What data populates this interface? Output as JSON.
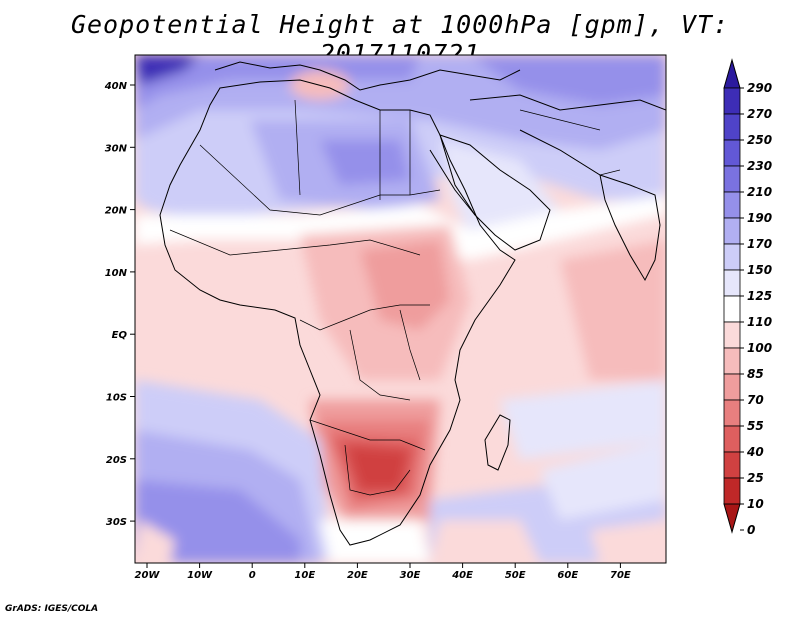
{
  "title": "Geopotential Height at 1000hPa [gpm], VT: 2017110721",
  "credit": "GrADS: IGES/COLA",
  "axes": {
    "lon_ticks": [
      "20W",
      "10W",
      "0",
      "10E",
      "20E",
      "30E",
      "40E",
      "50E",
      "60E",
      "70E"
    ],
    "lat_ticks": [
      "40N",
      "30N",
      "20N",
      "10N",
      "EQ",
      "10S",
      "20S",
      "30S"
    ]
  },
  "colorbar": {
    "levels": [
      "290",
      "270",
      "250",
      "230",
      "210",
      "190",
      "170",
      "150",
      "125",
      "110",
      "100",
      "85",
      "70",
      "55",
      "40",
      "25",
      "10",
      "0"
    ],
    "colors": [
      "#2b1a9e",
      "#3d2db6",
      "#4f43c8",
      "#6258d6",
      "#7a72e0",
      "#9590ea",
      "#b1aff2",
      "#cdcdf8",
      "#e6e6fb",
      "#ffffff",
      "#fbdada",
      "#f6bcbc",
      "#ef9d9d",
      "#e87f7f",
      "#de5f5f",
      "#d04141",
      "#bf2828",
      "#a81616"
    ]
  }
}
